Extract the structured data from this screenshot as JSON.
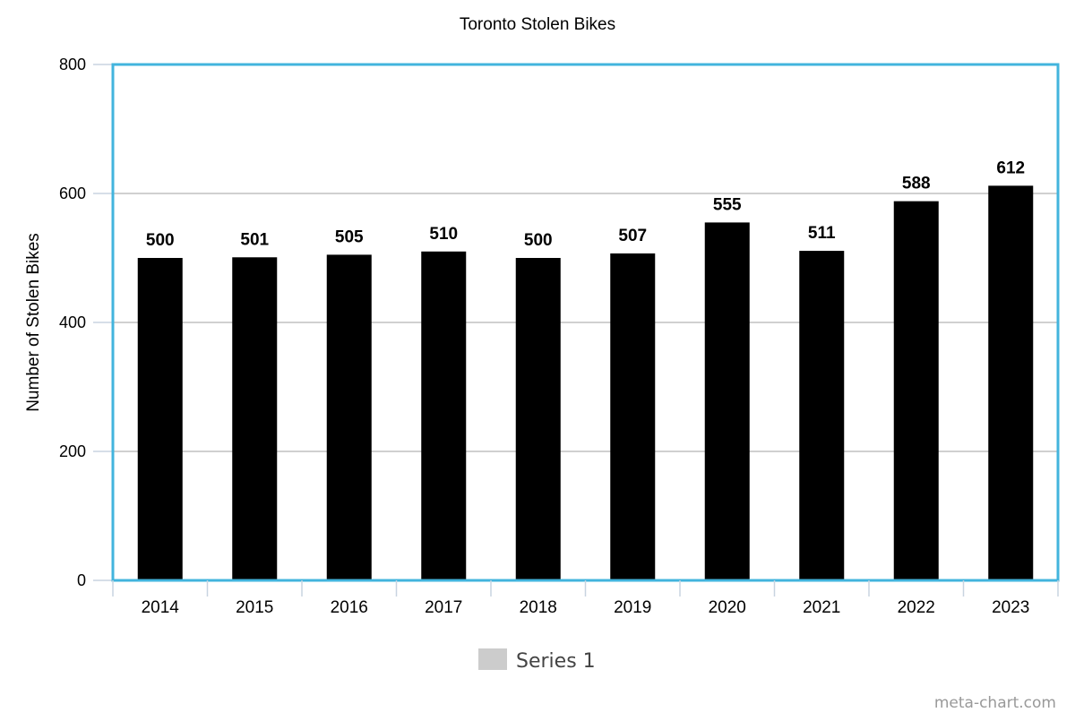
{
  "chart_data": {
    "type": "bar",
    "title": "Toronto Stolen Bikes",
    "xlabel": "",
    "ylabel": "Number of Stolen Bikes",
    "categories": [
      "2014",
      "2015",
      "2016",
      "2017",
      "2018",
      "2019",
      "2020",
      "2021",
      "2022",
      "2023"
    ],
    "series": [
      {
        "name": "Series 1",
        "values": [
          500,
          501,
          505,
          510,
          500,
          507,
          555,
          511,
          588,
          612
        ]
      }
    ],
    "ylim": [
      0,
      800
    ],
    "yticks": [
      "0",
      "200",
      "400",
      "600",
      "800"
    ],
    "data_labels": [
      "500",
      "501",
      "505",
      "510",
      "500",
      "507",
      "555",
      "511",
      "588",
      "612"
    ],
    "grid": true,
    "legend": "bottom-center",
    "colors": {
      "bar": "#000000",
      "frame": "#42b4dd",
      "grid": "#c0c0c0",
      "legend_swatch": "#cccccc",
      "axis_ticks": "#c8d4e0"
    }
  },
  "watermark": "meta-chart.com"
}
